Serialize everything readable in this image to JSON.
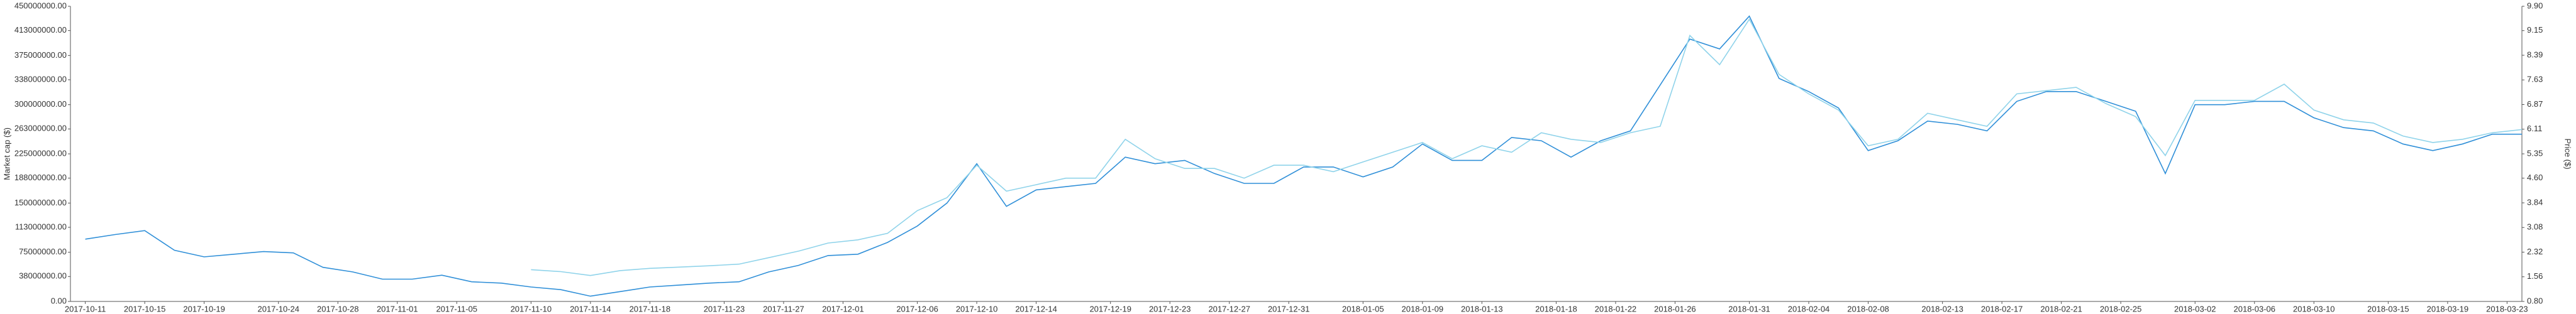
{
  "chart_data": {
    "type": "line",
    "y_label": "Market cap ($)",
    "y2_label": "Price ($)",
    "x": [
      "2017-10-11",
      "2017-10-13",
      "2017-10-15",
      "2017-10-17",
      "2017-10-19",
      "2017-10-21",
      "2017-10-23",
      "2017-10-25",
      "2017-10-27",
      "2017-10-29",
      "2017-10-31",
      "2017-11-02",
      "2017-11-04",
      "2017-11-06",
      "2017-11-08",
      "2017-11-10",
      "2017-11-12",
      "2017-11-14",
      "2017-11-16",
      "2017-11-18",
      "2017-11-20",
      "2017-11-22",
      "2017-11-24",
      "2017-11-26",
      "2017-11-28",
      "2017-11-30",
      "2017-12-02",
      "2017-12-04",
      "2017-12-06",
      "2017-12-08",
      "2017-12-10",
      "2017-12-12",
      "2017-12-14",
      "2017-12-16",
      "2017-12-18",
      "2017-12-20",
      "2017-12-22",
      "2017-12-24",
      "2017-12-26",
      "2017-12-28",
      "2017-12-30",
      "2018-01-01",
      "2018-01-03",
      "2018-01-05",
      "2018-01-07",
      "2018-01-09",
      "2018-01-11",
      "2018-01-13",
      "2018-01-15",
      "2018-01-17",
      "2018-01-19",
      "2018-01-21",
      "2018-01-23",
      "2018-01-25",
      "2018-01-27",
      "2018-01-29",
      "2018-01-31",
      "2018-02-02",
      "2018-02-04",
      "2018-02-06",
      "2018-02-08",
      "2018-02-10",
      "2018-02-12",
      "2018-02-14",
      "2018-02-16",
      "2018-02-18",
      "2018-02-20",
      "2018-02-22",
      "2018-02-24",
      "2018-02-26",
      "2018-02-28",
      "2018-03-02",
      "2018-03-04",
      "2018-03-06",
      "2018-03-08",
      "2018-03-10",
      "2018-03-12",
      "2018-03-14",
      "2018-03-16",
      "2018-03-18",
      "2018-03-20",
      "2018-03-22",
      "2018-03-24"
    ],
    "series": [
      {
        "name": "Market cap",
        "color": "#2f8fd8",
        "axis": "y",
        "values": [
          95000000,
          102000000,
          108000000,
          78000000,
          68000000,
          72000000,
          76000000,
          74000000,
          52000000,
          45000000,
          34000000,
          34000000,
          40000000,
          30000000,
          28000000,
          22000000,
          18000000,
          8000000,
          15000000,
          22000000,
          25000000,
          28000000,
          30000000,
          45000000,
          55000000,
          70000000,
          72000000,
          90000000,
          115000000,
          150000000,
          210000000,
          145000000,
          170000000,
          175000000,
          180000000,
          220000000,
          210000000,
          215000000,
          195000000,
          180000000,
          180000000,
          205000000,
          205000000,
          190000000,
          205000000,
          240000000,
          215000000,
          215000000,
          250000000,
          245000000,
          220000000,
          245000000,
          260000000,
          330000000,
          400000000,
          385000000,
          435000000,
          340000000,
          320000000,
          295000000,
          230000000,
          245000000,
          275000000,
          270000000,
          260000000,
          305000000,
          320000000,
          320000000,
          305000000,
          290000000,
          195000000,
          300000000,
          300000000,
          305000000,
          305000000,
          280000000,
          265000000,
          260000000,
          240000000,
          230000000,
          240000000,
          255000000,
          255000000
        ]
      },
      {
        "name": "Price",
        "color": "#8fd3ea",
        "axis": "y2",
        "values": [
          null,
          null,
          null,
          null,
          null,
          null,
          null,
          null,
          null,
          null,
          null,
          null,
          null,
          null,
          null,
          1.78,
          1.72,
          1.6,
          1.75,
          1.82,
          1.86,
          1.9,
          1.95,
          2.15,
          2.35,
          2.6,
          2.7,
          2.9,
          3.6,
          4.0,
          5.0,
          4.2,
          4.4,
          4.6,
          4.6,
          5.8,
          5.2,
          4.9,
          4.9,
          4.6,
          5.0,
          5.0,
          4.8,
          5.1,
          5.4,
          5.7,
          5.2,
          5.6,
          5.4,
          6.0,
          5.8,
          5.7,
          6.0,
          6.2,
          9.0,
          8.1,
          9.5,
          7.8,
          7.2,
          6.7,
          5.6,
          5.8,
          6.6,
          6.4,
          6.2,
          7.2,
          7.3,
          7.4,
          6.9,
          6.5,
          5.3,
          7.0,
          7.0,
          7.0,
          7.5,
          6.7,
          6.4,
          6.3,
          5.9,
          5.7,
          5.8,
          6.0,
          6.1
        ]
      }
    ],
    "xlim": [
      "2017-10-10",
      "2018-03-24"
    ],
    "xticks": [
      "2017-10-11",
      "2017-10-15",
      "2017-10-19",
      "2017-10-24",
      "2017-10-28",
      "2017-11-01",
      "2017-11-05",
      "2017-11-10",
      "2017-11-14",
      "2017-11-18",
      "2017-11-23",
      "2017-11-27",
      "2017-12-01",
      "2017-12-06",
      "2017-12-10",
      "2017-12-14",
      "2017-12-19",
      "2017-12-23",
      "2017-12-27",
      "2017-12-31",
      "2018-01-05",
      "2018-01-09",
      "2018-01-13",
      "2018-01-18",
      "2018-01-22",
      "2018-01-26",
      "2018-01-31",
      "2018-02-04",
      "2018-02-08",
      "2018-02-13",
      "2018-02-17",
      "2018-02-21",
      "2018-02-25",
      "2018-03-02",
      "2018-03-06",
      "2018-03-10",
      "2018-03-15",
      "2018-03-19",
      "2018-03-23"
    ],
    "ylim": [
      0,
      450000000
    ],
    "yticks": [
      {
        "value": 0,
        "label": "0.00"
      },
      {
        "value": 38000000,
        "label": "38000000.00"
      },
      {
        "value": 75000000,
        "label": "75000000.00"
      },
      {
        "value": 113000000,
        "label": "113000000.00"
      },
      {
        "value": 150000000,
        "label": "150000000.00"
      },
      {
        "value": 188000000,
        "label": "188000000.00"
      },
      {
        "value": 225000000,
        "label": "225000000.00"
      },
      {
        "value": 263000000,
        "label": "263000000.00"
      },
      {
        "value": 300000000,
        "label": "300000000.00"
      },
      {
        "value": 338000000,
        "label": "338000000.00"
      },
      {
        "value": 375000000,
        "label": "375000000.00"
      },
      {
        "value": 413000000,
        "label": "413000000.00"
      },
      {
        "value": 450000000,
        "label": "450000000.00"
      }
    ],
    "y2lim": [
      0.8,
      9.9
    ],
    "y2ticks": [
      {
        "value": 0.8,
        "label": "0.80"
      },
      1.56,
      2.32,
      3.08,
      3.84,
      {
        "value": 4.6,
        "label": "4.60"
      },
      5.35,
      6.11,
      6.87,
      7.63,
      8.39,
      9.15,
      {
        "value": 9.9,
        "label": "9.90"
      }
    ],
    "grid": false
  }
}
